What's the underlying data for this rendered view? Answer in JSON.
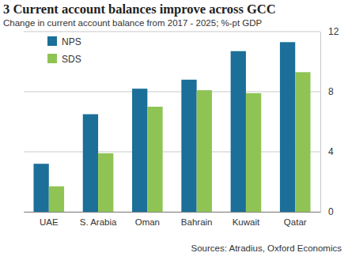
{
  "chart_data": {
    "type": "bar",
    "title": "3 Current account balances improve across GCC",
    "subtitle": "Change in current account balance from 2017 - 2025; %-pt GDP",
    "source": "Sources: Atradius, Oxford Economics",
    "categories": [
      "UAE",
      "S. Arabia",
      "Oman",
      "Bahrain",
      "Kuwait",
      "Qatar"
    ],
    "series": [
      {
        "name": "NPS",
        "color": "#1b6f98",
        "values": [
          3.2,
          6.5,
          8.2,
          8.8,
          10.7,
          11.3
        ]
      },
      {
        "name": "SDS",
        "color": "#8fc454",
        "values": [
          1.7,
          3.9,
          7.0,
          8.1,
          7.9,
          9.3
        ]
      }
    ],
    "ylim": [
      0,
      12
    ],
    "yticks": [
      0,
      4,
      8,
      12
    ],
    "grid": true,
    "legend": "upper left"
  }
}
